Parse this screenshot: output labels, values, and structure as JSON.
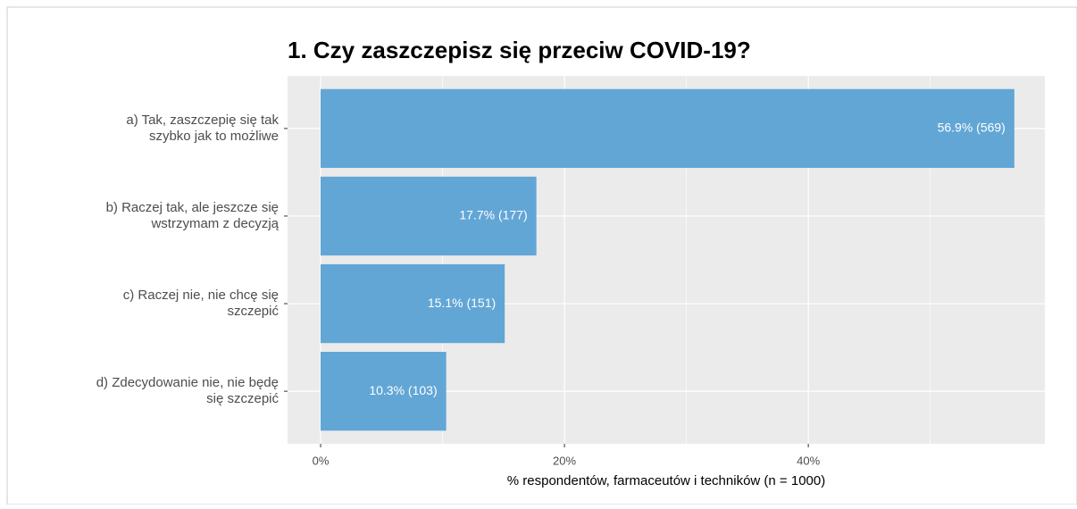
{
  "chart_data": {
    "type": "barh",
    "title": "1. Czy zaszczepisz się przeciw COVID-19?",
    "xlabel": "% respondentów, farmaceutów i techników (n = 1000)",
    "categories": [
      "a) Tak, zaszczepię się tak\nszybko jak to możliwe",
      "b) Raczej tak, ale jeszcze się\nwstrzymam z decyzją",
      "c) Raczej nie, nie chcę się\nszczepić",
      "d) Zdecydowanie nie, nie będę\nsię szczepić"
    ],
    "values": [
      56.9,
      17.7,
      15.1,
      10.3
    ],
    "value_labels": [
      "56.9% (569)",
      "17.7% (177)",
      "15.1% (151)",
      "10.3% (103)"
    ],
    "color": "#62a6d6",
    "xlim": [
      -2.71,
      59.4
    ],
    "xticks": [
      {
        "value": 0,
        "label": "0%"
      },
      {
        "value": 20,
        "label": "20%"
      },
      {
        "value": 40,
        "label": "40%"
      }
    ],
    "minor_xticks": [
      10,
      30,
      50
    ],
    "grid": true
  }
}
